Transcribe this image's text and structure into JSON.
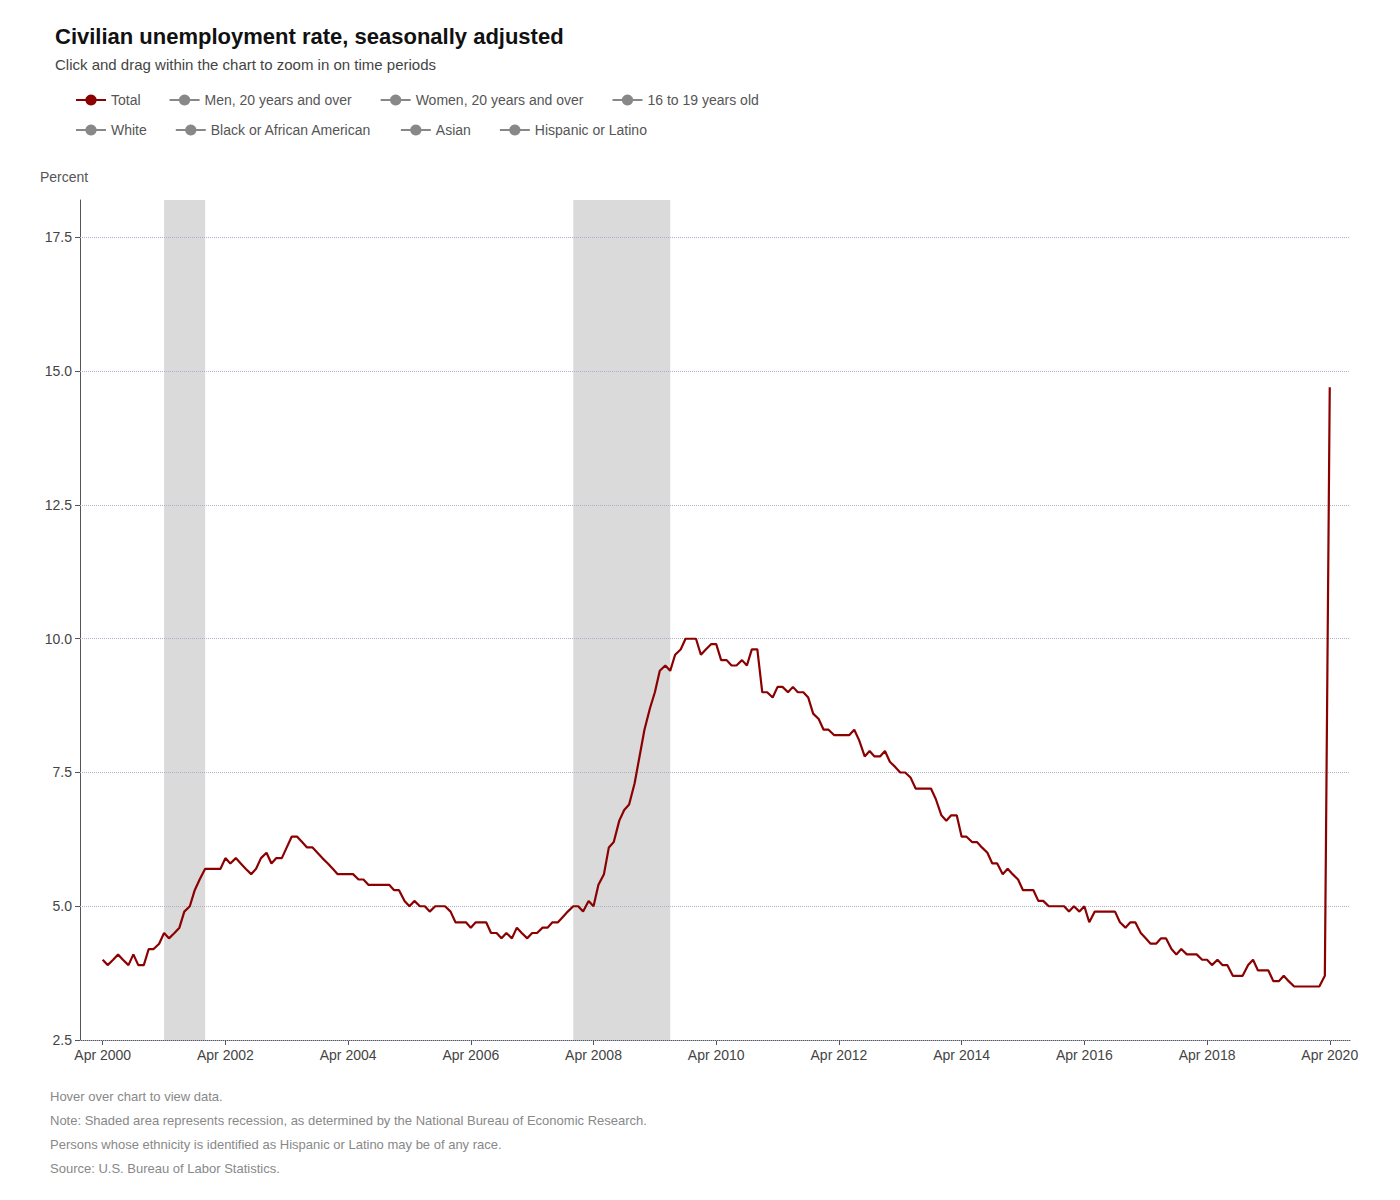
{
  "chart_data": {
    "type": "line",
    "title": "Civilian unemployment rate, seasonally adjusted",
    "subtitle": "Click and drag within the chart to zoom in on time periods",
    "ylabel": "Percent",
    "xlim": [
      1999.88,
      2020.58
    ],
    "xticks": [
      {
        "value": 2000.25,
        "label": "Apr 2000"
      },
      {
        "value": 2002.25,
        "label": "Apr 2002"
      },
      {
        "value": 2004.25,
        "label": "Apr 2004"
      },
      {
        "value": 2006.25,
        "label": "Apr 2006"
      },
      {
        "value": 2008.25,
        "label": "Apr 2008"
      },
      {
        "value": 2010.25,
        "label": "Apr 2010"
      },
      {
        "value": 2012.25,
        "label": "Apr 2012"
      },
      {
        "value": 2014.25,
        "label": "Apr 2014"
      },
      {
        "value": 2016.25,
        "label": "Apr 2016"
      },
      {
        "value": 2018.25,
        "label": "Apr 2018"
      },
      {
        "value": 2020.25,
        "label": "Apr 2020"
      }
    ],
    "ylim": [
      2.5,
      18.2
    ],
    "yticks": [
      2.5,
      {
        "value": 5,
        "label": "5.0"
      },
      7.5,
      {
        "value": 10,
        "label": "10.0"
      },
      12.5,
      {
        "value": 15,
        "label": "15.0"
      },
      17.5
    ],
    "grid": "y",
    "legend": "top",
    "recessions": {
      "color": "#d3d3d3",
      "ranges": [
        [
          2001.25,
          2001.92
        ],
        [
          2007.92,
          2009.5
        ]
      ]
    },
    "annotations": [
      "Hover over chart to view data.",
      "Note: Shaded area represents recession, as determined by the National Bureau of Economic Research.",
      "Persons whose ethnicity is identified as Hispanic or Latino may be of any race.",
      "Source: U.S. Bureau of Labor Statistics."
    ],
    "series": [
      {
        "name": "Total",
        "color": "#8b0000",
        "x": [
          2000.25,
          2000.33,
          2000.42,
          2000.5,
          2000.58,
          2000.67,
          2000.75,
          2000.83,
          2000.92,
          2001.0,
          2001.08,
          2001.17,
          2001.25,
          2001.33,
          2001.42,
          2001.5,
          2001.58,
          2001.67,
          2001.75,
          2001.83,
          2001.92,
          2002.0,
          2002.08,
          2002.17,
          2002.25,
          2002.33,
          2002.42,
          2002.5,
          2002.58,
          2002.67,
          2002.75,
          2002.83,
          2002.92,
          2003.0,
          2003.08,
          2003.17,
          2003.25,
          2003.33,
          2003.42,
          2003.5,
          2003.58,
          2003.67,
          2003.75,
          2003.83,
          2003.92,
          2004.0,
          2004.08,
          2004.17,
          2004.25,
          2004.33,
          2004.42,
          2004.5,
          2004.58,
          2004.67,
          2004.75,
          2004.83,
          2004.92,
          2005.0,
          2005.08,
          2005.17,
          2005.25,
          2005.33,
          2005.42,
          2005.5,
          2005.58,
          2005.67,
          2005.75,
          2005.83,
          2005.92,
          2006.0,
          2006.08,
          2006.17,
          2006.25,
          2006.33,
          2006.42,
          2006.5,
          2006.58,
          2006.67,
          2006.75,
          2006.83,
          2006.92,
          2007.0,
          2007.08,
          2007.17,
          2007.25,
          2007.33,
          2007.42,
          2007.5,
          2007.58,
          2007.67,
          2007.75,
          2007.83,
          2007.92,
          2008.0,
          2008.08,
          2008.17,
          2008.25,
          2008.33,
          2008.42,
          2008.5,
          2008.58,
          2008.67,
          2008.75,
          2008.83,
          2008.92,
          2009.0,
          2009.08,
          2009.17,
          2009.25,
          2009.33,
          2009.42,
          2009.5,
          2009.58,
          2009.67,
          2009.75,
          2009.83,
          2009.92,
          2010.0,
          2010.08,
          2010.17,
          2010.25,
          2010.33,
          2010.42,
          2010.5,
          2010.58,
          2010.67,
          2010.75,
          2010.83,
          2010.92,
          2011.0,
          2011.08,
          2011.17,
          2011.25,
          2011.33,
          2011.42,
          2011.5,
          2011.58,
          2011.67,
          2011.75,
          2011.83,
          2011.92,
          2012.0,
          2012.08,
          2012.17,
          2012.25,
          2012.33,
          2012.42,
          2012.5,
          2012.58,
          2012.67,
          2012.75,
          2012.83,
          2012.92,
          2013.0,
          2013.08,
          2013.17,
          2013.25,
          2013.33,
          2013.42,
          2013.5,
          2013.58,
          2013.67,
          2013.75,
          2013.83,
          2013.92,
          2014.0,
          2014.08,
          2014.17,
          2014.25,
          2014.33,
          2014.42,
          2014.5,
          2014.58,
          2014.67,
          2014.75,
          2014.83,
          2014.92,
          2015.0,
          2015.08,
          2015.17,
          2015.25,
          2015.33,
          2015.42,
          2015.5,
          2015.58,
          2015.67,
          2015.75,
          2015.83,
          2015.92,
          2016.0,
          2016.08,
          2016.17,
          2016.25,
          2016.33,
          2016.42,
          2016.5,
          2016.58,
          2016.67,
          2016.75,
          2016.83,
          2016.92,
          2017.0,
          2017.08,
          2017.17,
          2017.25,
          2017.33,
          2017.42,
          2017.5,
          2017.58,
          2017.67,
          2017.75,
          2017.83,
          2017.92,
          2018.0,
          2018.08,
          2018.17,
          2018.25,
          2018.33,
          2018.42,
          2018.5,
          2018.58,
          2018.67,
          2018.75,
          2018.83,
          2018.92,
          2019.0,
          2019.08,
          2019.17,
          2019.25,
          2019.33,
          2019.42,
          2019.5,
          2019.58,
          2019.67,
          2019.75,
          2019.83,
          2019.92,
          2020.0,
          2020.08,
          2020.17,
          2020.25
        ],
        "values": [
          4.0,
          3.9,
          4.0,
          4.1,
          4.0,
          3.9,
          4.1,
          3.9,
          3.9,
          4.2,
          4.2,
          4.3,
          4.5,
          4.4,
          4.5,
          4.6,
          4.9,
          5.0,
          5.3,
          5.5,
          5.7,
          5.7,
          5.7,
          5.7,
          5.9,
          5.8,
          5.9,
          5.8,
          5.7,
          5.6,
          5.7,
          5.9,
          6.0,
          5.8,
          5.9,
          5.9,
          6.1,
          6.3,
          6.3,
          6.2,
          6.1,
          6.1,
          6.0,
          5.9,
          5.8,
          5.7,
          5.6,
          5.6,
          5.6,
          5.6,
          5.5,
          5.5,
          5.4,
          5.4,
          5.4,
          5.4,
          5.4,
          5.3,
          5.3,
          5.1,
          5.0,
          5.1,
          5.0,
          5.0,
          4.9,
          5.0,
          5.0,
          5.0,
          4.9,
          4.7,
          4.7,
          4.7,
          4.6,
          4.7,
          4.7,
          4.7,
          4.5,
          4.5,
          4.4,
          4.5,
          4.4,
          4.6,
          4.5,
          4.4,
          4.5,
          4.5,
          4.6,
          4.6,
          4.7,
          4.7,
          4.8,
          4.9,
          5.0,
          5.0,
          4.9,
          5.1,
          5.0,
          5.4,
          5.6,
          6.1,
          6.2,
          6.6,
          6.8,
          6.9,
          7.3,
          7.8,
          8.3,
          8.7,
          9.0,
          9.4,
          9.5,
          9.4,
          9.7,
          9.8,
          10.0,
          10.0,
          10.0,
          9.7,
          9.8,
          9.9,
          9.9,
          9.6,
          9.6,
          9.5,
          9.5,
          9.6,
          9.5,
          9.8,
          9.8,
          9.0,
          9.0,
          8.9,
          9.1,
          9.1,
          9.0,
          9.1,
          9.0,
          9.0,
          8.9,
          8.6,
          8.5,
          8.3,
          8.3,
          8.2,
          8.2,
          8.2,
          8.2,
          8.3,
          8.1,
          7.8,
          7.9,
          7.8,
          7.8,
          7.9,
          7.7,
          7.6,
          7.5,
          7.5,
          7.4,
          7.2,
          7.2,
          7.2,
          7.2,
          7.0,
          6.7,
          6.6,
          6.7,
          6.7,
          6.3,
          6.3,
          6.2,
          6.2,
          6.1,
          6.0,
          5.8,
          5.8,
          5.6,
          5.7,
          5.6,
          5.5,
          5.3,
          5.3,
          5.3,
          5.1,
          5.1,
          5.0,
          5.0,
          5.0,
          5.0,
          4.9,
          5.0,
          4.9,
          5.0,
          4.7,
          4.9,
          4.9,
          4.9,
          4.9,
          4.9,
          4.7,
          4.6,
          4.7,
          4.7,
          4.5,
          4.4,
          4.3,
          4.3,
          4.4,
          4.4,
          4.2,
          4.1,
          4.2,
          4.1,
          4.1,
          4.1,
          4.0,
          4.0,
          3.9,
          4.0,
          3.9,
          3.9,
          3.7,
          3.7,
          3.7,
          3.9,
          4.0,
          3.8,
          3.8,
          3.8,
          3.6,
          3.6,
          3.7,
          3.6,
          3.5,
          3.5,
          3.5,
          3.5,
          3.5,
          3.5,
          3.7,
          14.7
        ]
      },
      {
        "name": "Men, 20 years and over",
        "color": "#888888",
        "x": [],
        "values": []
      },
      {
        "name": "Women, 20 years and over",
        "color": "#888888",
        "x": [],
        "values": []
      },
      {
        "name": "16 to 19 years old",
        "color": "#888888",
        "x": [],
        "values": []
      },
      {
        "name": "White",
        "color": "#888888",
        "x": [],
        "values": []
      },
      {
        "name": "Black or African American",
        "color": "#888888",
        "x": [],
        "values": []
      },
      {
        "name": "Asian",
        "color": "#888888",
        "x": [],
        "values": []
      },
      {
        "name": "Hispanic or Latino",
        "color": "#888888",
        "x": [],
        "values": []
      }
    ]
  }
}
